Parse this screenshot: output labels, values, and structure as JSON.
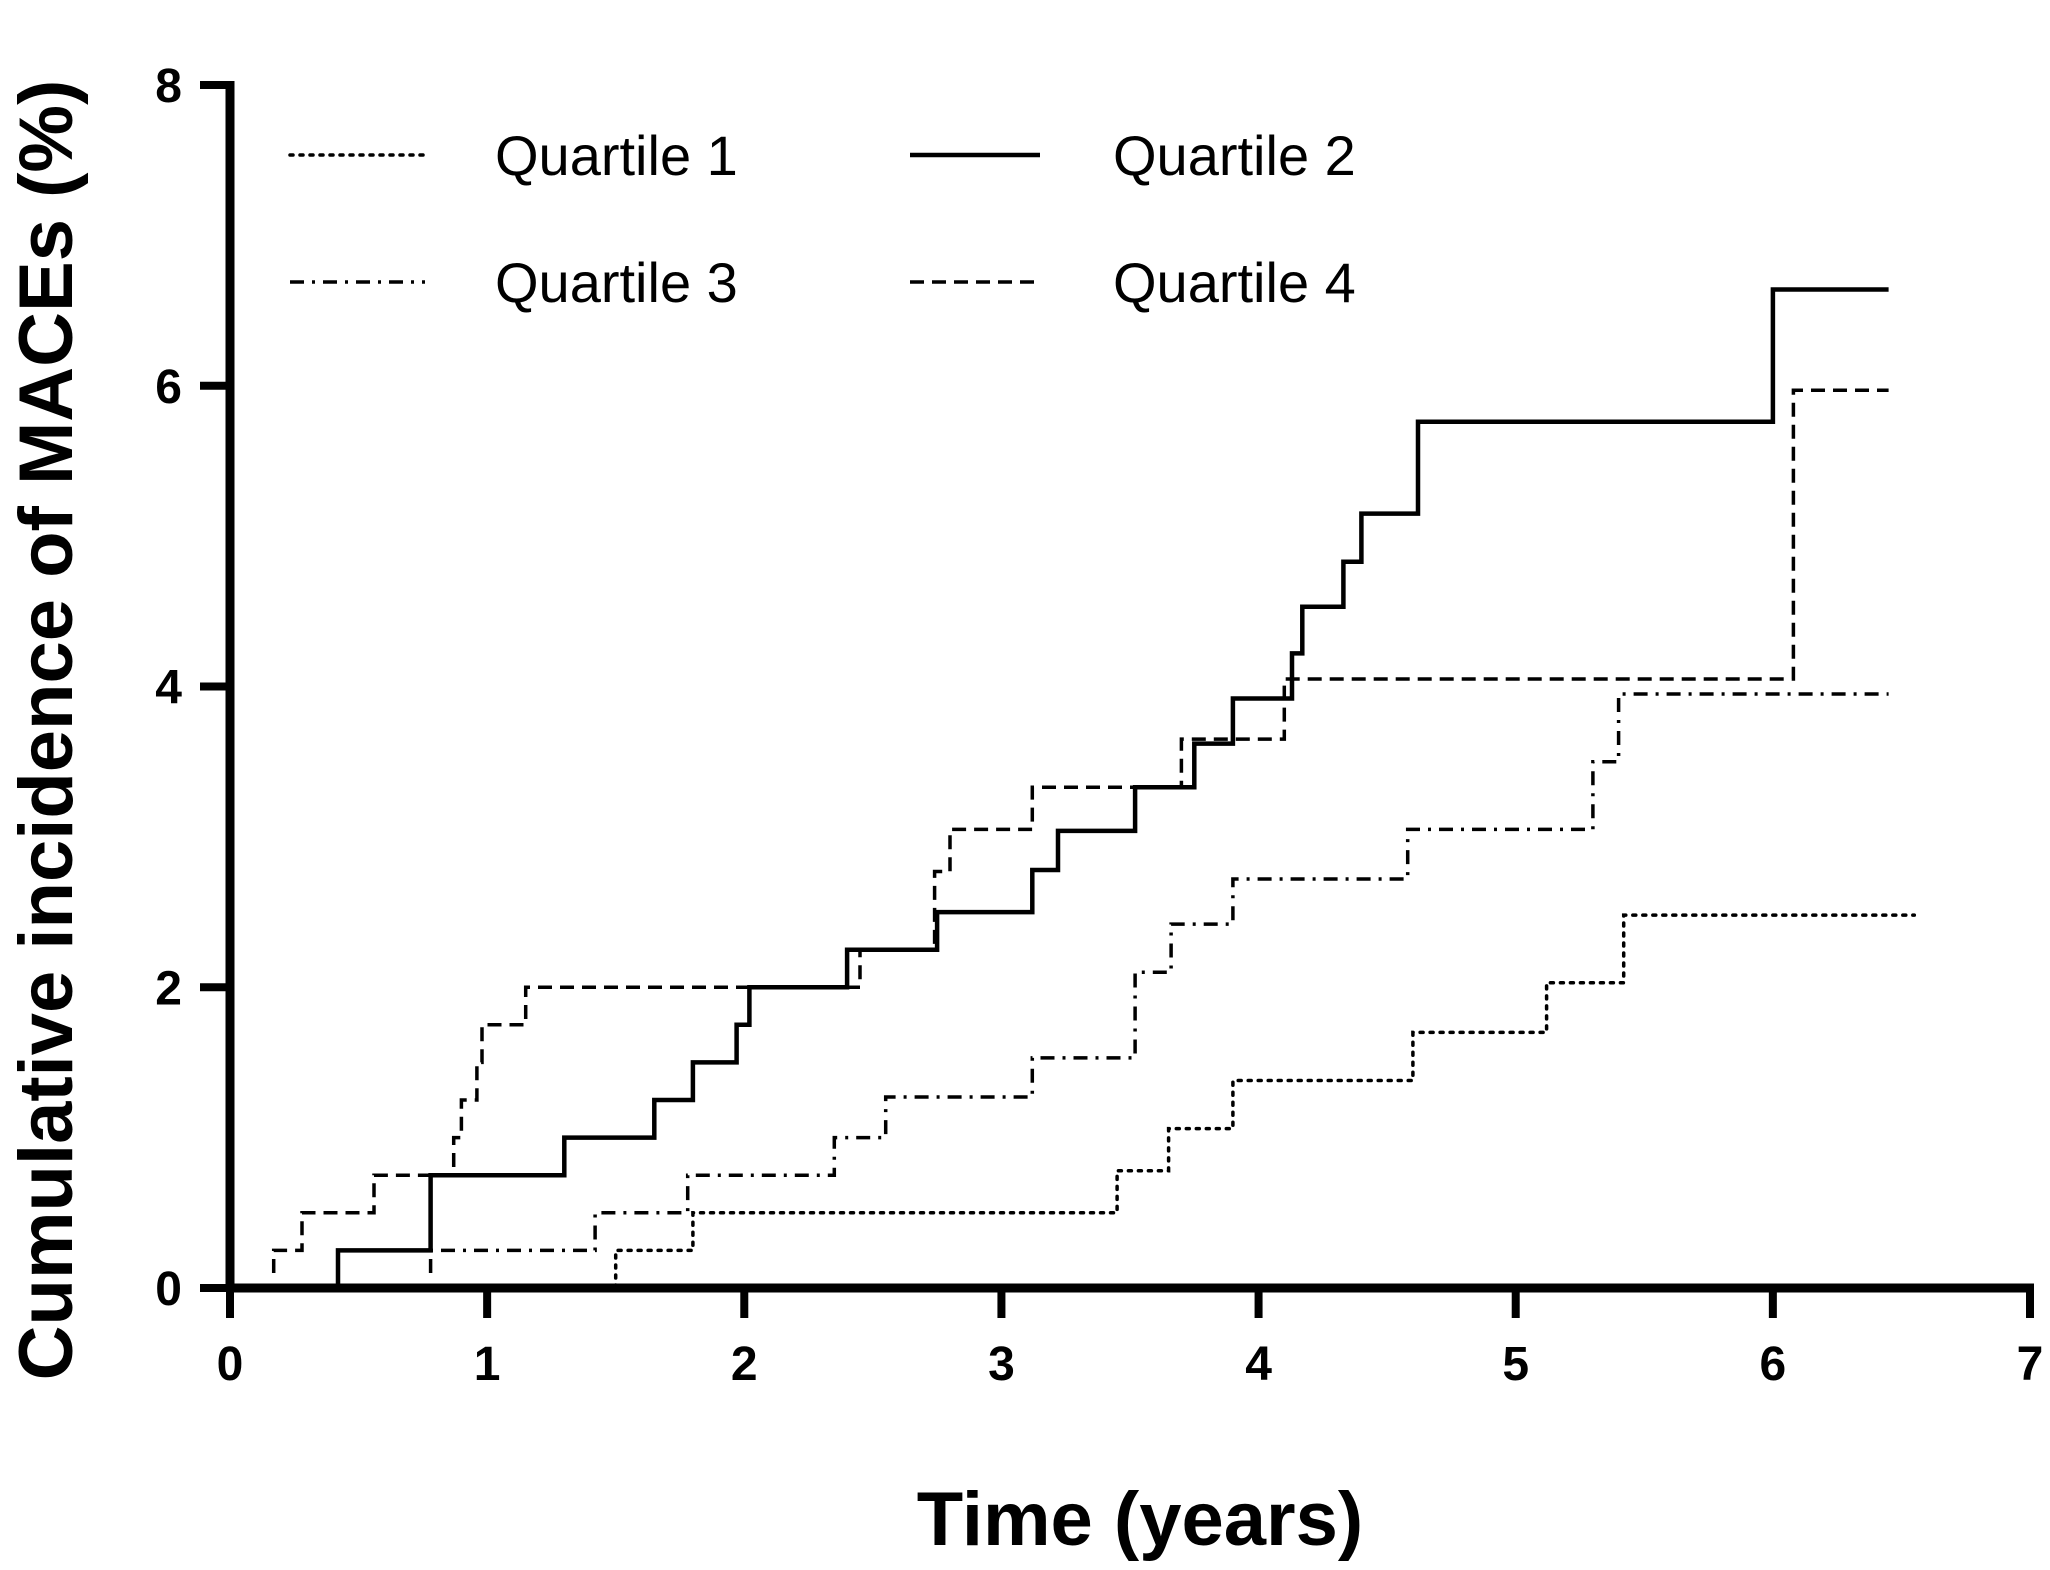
{
  "chart_data": {
    "type": "line",
    "title": "",
    "xlabel": "Time (years)",
    "ylabel": "Cumulative incidence of MACEs (%)",
    "xlim": [
      0,
      7
    ],
    "ylim": [
      0,
      8
    ],
    "x_ticks": [
      0,
      1,
      2,
      3,
      4,
      5,
      6,
      7
    ],
    "y_ticks": [
      0,
      2,
      4,
      6,
      8
    ],
    "grid": false,
    "step": true,
    "legend_position": "top-left",
    "series": [
      {
        "name": "Quartile 1",
        "line_style": "dotted",
        "color": "#000000",
        "points": [
          [
            1.5,
            0.0
          ],
          [
            1.5,
            0.25
          ],
          [
            1.8,
            0.25
          ],
          [
            1.8,
            0.5
          ],
          [
            3.45,
            0.5
          ],
          [
            3.45,
            0.78
          ],
          [
            3.65,
            0.78
          ],
          [
            3.65,
            1.06
          ],
          [
            3.9,
            1.06
          ],
          [
            3.9,
            1.38
          ],
          [
            4.6,
            1.38
          ],
          [
            4.6,
            1.7
          ],
          [
            5.12,
            1.7
          ],
          [
            5.12,
            2.03
          ],
          [
            5.42,
            2.03
          ],
          [
            5.42,
            2.48
          ],
          [
            6.55,
            2.48
          ]
        ]
      },
      {
        "name": "Quartile 2",
        "line_style": "solid",
        "color": "#000000",
        "points": [
          [
            0.42,
            0.0
          ],
          [
            0.42,
            0.25
          ],
          [
            0.78,
            0.25
          ],
          [
            0.78,
            0.75
          ],
          [
            1.3,
            0.75
          ],
          [
            1.3,
            1.0
          ],
          [
            1.65,
            1.0
          ],
          [
            1.65,
            1.25
          ],
          [
            1.8,
            1.25
          ],
          [
            1.8,
            1.5
          ],
          [
            1.97,
            1.5
          ],
          [
            1.97,
            1.75
          ],
          [
            2.02,
            1.75
          ],
          [
            2.02,
            2.0
          ],
          [
            2.4,
            2.0
          ],
          [
            2.4,
            2.25
          ],
          [
            2.75,
            2.25
          ],
          [
            2.75,
            2.5
          ],
          [
            3.12,
            2.5
          ],
          [
            3.12,
            2.78
          ],
          [
            3.22,
            2.78
          ],
          [
            3.22,
            3.04
          ],
          [
            3.52,
            3.04
          ],
          [
            3.52,
            3.33
          ],
          [
            3.75,
            3.33
          ],
          [
            3.75,
            3.62
          ],
          [
            3.9,
            3.62
          ],
          [
            3.9,
            3.92
          ],
          [
            4.13,
            3.92
          ],
          [
            4.13,
            4.22
          ],
          [
            4.17,
            4.22
          ],
          [
            4.17,
            4.53
          ],
          [
            4.33,
            4.53
          ],
          [
            4.33,
            4.83
          ],
          [
            4.4,
            4.83
          ],
          [
            4.4,
            5.15
          ],
          [
            4.62,
            5.15
          ],
          [
            4.62,
            5.76
          ],
          [
            6.0,
            5.76
          ],
          [
            6.0,
            6.64
          ],
          [
            6.45,
            6.64
          ]
        ]
      },
      {
        "name": "Quartile 3",
        "line_style": "dashdot",
        "color": "#000000",
        "points": [
          [
            0.78,
            0.1
          ],
          [
            0.78,
            0.25
          ],
          [
            1.42,
            0.25
          ],
          [
            1.42,
            0.5
          ],
          [
            1.78,
            0.5
          ],
          [
            1.78,
            0.75
          ],
          [
            2.35,
            0.75
          ],
          [
            2.35,
            1.0
          ],
          [
            2.55,
            1.0
          ],
          [
            2.55,
            1.27
          ],
          [
            3.12,
            1.27
          ],
          [
            3.12,
            1.53
          ],
          [
            3.52,
            1.53
          ],
          [
            3.52,
            2.1
          ],
          [
            3.66,
            2.1
          ],
          [
            3.66,
            2.42
          ],
          [
            3.9,
            2.42
          ],
          [
            3.9,
            2.72
          ],
          [
            4.58,
            2.72
          ],
          [
            4.58,
            3.05
          ],
          [
            5.3,
            3.05
          ],
          [
            5.3,
            3.5
          ],
          [
            5.4,
            3.5
          ],
          [
            5.4,
            3.95
          ],
          [
            6.45,
            3.95
          ]
        ]
      },
      {
        "name": "Quartile 4",
        "line_style": "dashed",
        "color": "#000000",
        "points": [
          [
            0.17,
            0.1
          ],
          [
            0.17,
            0.25
          ],
          [
            0.28,
            0.25
          ],
          [
            0.28,
            0.5
          ],
          [
            0.56,
            0.5
          ],
          [
            0.56,
            0.75
          ],
          [
            0.87,
            0.75
          ],
          [
            0.87,
            1.0
          ],
          [
            0.9,
            1.0
          ],
          [
            0.9,
            1.25
          ],
          [
            0.96,
            1.25
          ],
          [
            0.96,
            1.5
          ],
          [
            0.98,
            1.5
          ],
          [
            0.98,
            1.75
          ],
          [
            1.15,
            1.75
          ],
          [
            1.15,
            2.0
          ],
          [
            2.45,
            2.0
          ],
          [
            2.45,
            2.25
          ],
          [
            2.74,
            2.25
          ],
          [
            2.74,
            2.77
          ],
          [
            2.8,
            2.77
          ],
          [
            2.8,
            3.05
          ],
          [
            3.12,
            3.05
          ],
          [
            3.12,
            3.33
          ],
          [
            3.7,
            3.33
          ],
          [
            3.7,
            3.65
          ],
          [
            4.1,
            3.65
          ],
          [
            4.1,
            4.05
          ],
          [
            6.08,
            4.05
          ],
          [
            6.08,
            5.97
          ],
          [
            6.45,
            5.97
          ]
        ]
      }
    ]
  }
}
